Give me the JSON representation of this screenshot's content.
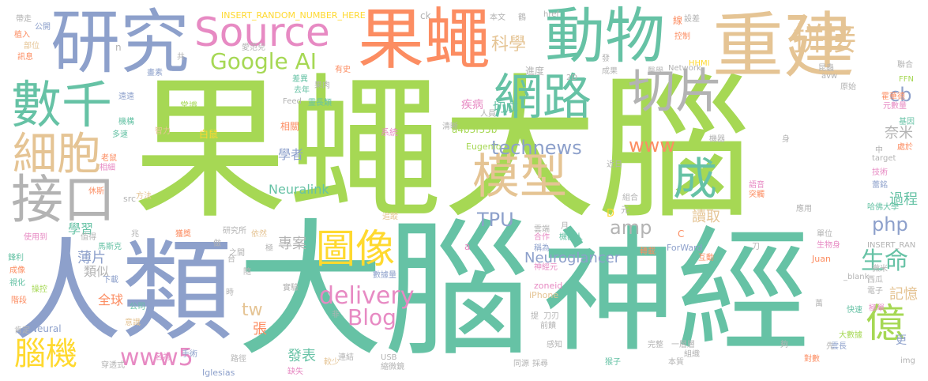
{
  "words": [
    {
      "text": "果蠅大腦",
      "color": "#a6d854"
    },
    {
      "text": "大腦",
      "color": "#66c2a5"
    },
    {
      "text": "神經",
      "color": "#66c2a5"
    },
    {
      "text": "人類",
      "color": "#8da0cb"
    },
    {
      "text": "果蠅",
      "color": "#fc8d62"
    },
    {
      "text": "研究",
      "color": "#8da0cb"
    },
    {
      "text": "重建",
      "color": "#e5c494"
    },
    {
      "text": "動物",
      "color": "#66c2a5"
    },
    {
      "text": "Source",
      "color": "#e78ac3"
    },
    {
      "text": "網路",
      "color": "#66c2a5"
    },
    {
      "text": "切片",
      "color": "#b3b3b3"
    },
    {
      "text": "數千",
      "color": "#66c2a5"
    },
    {
      "text": "細胞",
      "color": "#e5c494"
    },
    {
      "text": "接口",
      "color": "#b3b3b3"
    },
    {
      "text": "模型",
      "color": "#e5c494"
    },
    {
      "text": "圖像",
      "color": "#ffd92f"
    },
    {
      "text": "拼接",
      "color": "#e5c494"
    },
    {
      "text": "Google AI",
      "color": "#a6d854"
    },
    {
      "text": "億",
      "color": "#a6d854"
    },
    {
      "text": "成",
      "color": "#66c2a5"
    },
    {
      "text": "生命",
      "color": "#66c2a5"
    },
    {
      "text": "腦機",
      "color": "#ffd92f"
    },
    {
      "text": "delivery",
      "color": "#e78ac3"
    },
    {
      "text": "www5",
      "color": "#e78ac3"
    },
    {
      "text": "technews",
      "color": "#8da0cb"
    },
    {
      "text": "Blog",
      "color": "#e78ac3"
    },
    {
      "text": "科學",
      "color": "#e5c494"
    },
    {
      "text": "www",
      "color": "#fc8d62"
    },
    {
      "text": "amp",
      "color": "#b3b3b3"
    },
    {
      "text": "TPU",
      "color": "#8da0cb"
    },
    {
      "text": "php",
      "color": "#8da0cb"
    },
    {
      "text": "cb",
      "color": "#8da0cb"
    },
    {
      "text": "tw",
      "color": "#e5c494"
    },
    {
      "text": "Neuralink",
      "color": "#66c2a5"
    },
    {
      "text": "Neuroglancer",
      "color": "#8da0cb"
    },
    {
      "text": "切成",
      "color": "#66c2a5"
    },
    {
      "text": "奈米",
      "color": "#b3b3b3"
    },
    {
      "text": "過程",
      "color": "#66c2a5"
    },
    {
      "text": "記憶",
      "color": "#e5c494"
    },
    {
      "text": "讀取",
      "color": "#e5c494"
    },
    {
      "text": "發表",
      "color": "#66c2a5"
    },
    {
      "text": "專案",
      "color": "#b3b3b3"
    },
    {
      "text": "學習",
      "color": "#66c2a5"
    },
    {
      "text": "薄片",
      "color": "#8da0cb"
    },
    {
      "text": "類似",
      "color": "#b3b3b3"
    },
    {
      "text": "全球",
      "color": "#fc8d62"
    },
    {
      "text": "張",
      "color": "#fc8d62"
    },
    {
      "text": "學者",
      "color": "#8da0cb"
    },
    {
      "text": "INSERT_RANDOM_NUMBER_HERE",
      "color": "#ffd92f"
    },
    {
      "text": "a4b3f35b",
      "color": "#a6d854"
    },
    {
      "text": "進度",
      "color": "#b3b3b3"
    },
    {
      "text": "疾病",
      "color": "#e78ac3"
    },
    {
      "text": "相關",
      "color": "#fc8d62"
    },
    {
      "text": "系統",
      "color": "#e78ac3"
    },
    {
      "text": "白鼠",
      "color": "#ffd92f"
    },
    {
      "text": "常識",
      "color": "#a6d854"
    },
    {
      "text": "靈長類",
      "color": "#66c2a5"
    },
    {
      "text": "D",
      "color": "#ffd92f"
    },
    {
      "text": "元",
      "color": "#b3b3b3"
    },
    {
      "text": "Eugenio",
      "color": "#a6d854"
    },
    {
      "text": "Network",
      "color": "#b3b3b3"
    },
    {
      "text": "ForWard",
      "color": "#8da0cb"
    },
    {
      "text": "zoneid",
      "color": "#e78ac3"
    },
    {
      "text": "iPhone",
      "color": "#e5c494"
    },
    {
      "text": "Iglesias",
      "color": "#8da0cb"
    },
    {
      "text": "USB",
      "color": "#b3b3b3"
    },
    {
      "text": "Juan",
      "color": "#fc8d62"
    },
    {
      "text": "INSERT_RAN",
      "color": "#b3b3b3"
    },
    {
      "text": "_blank",
      "color": "#b3b3b3"
    },
    {
      "text": "target",
      "color": "#b3b3b3"
    },
    {
      "text": "Feed",
      "color": "#b3b3b3"
    },
    {
      "text": "href",
      "color": "#b3b3b3"
    },
    {
      "text": "HHMI",
      "color": "#ffd92f"
    },
    {
      "text": "ck",
      "color": "#b3b3b3"
    },
    {
      "text": "src",
      "color": "#b3b3b3"
    },
    {
      "text": "Neural",
      "color": "#8da0cb"
    },
    {
      "text": "img",
      "color": "#b3b3b3"
    },
    {
      "text": "FFN",
      "color": "#a6d854"
    },
    {
      "text": "avw",
      "color": "#b3b3b3"
    },
    {
      "text": "2D",
      "color": "#b3b3b3"
    },
    {
      "text": "C",
      "color": "#fc8d62"
    },
    {
      "text": "a",
      "color": "#e78ac3"
    },
    {
      "text": "n",
      "color": "#b3b3b3"
    },
    {
      "text": "帶走",
      "color": "#b3b3b3"
    },
    {
      "text": "公開",
      "color": "#8da0cb"
    },
    {
      "text": "植入",
      "color": "#fc8d62"
    },
    {
      "text": "部位",
      "color": "#e5c494"
    },
    {
      "text": "訊息",
      "color": "#fc8d62"
    },
    {
      "text": "鋒利",
      "color": "#66c2a5"
    },
    {
      "text": "成像",
      "color": "#fc8d62"
    },
    {
      "text": "視化",
      "color": "#66c2a5"
    },
    {
      "text": "操控",
      "color": "#a6d854"
    },
    {
      "text": "階段",
      "color": "#fc8d62"
    },
    {
      "text": "肯定",
      "color": "#b3b3b3"
    },
    {
      "text": "使用到",
      "color": "#e78ac3"
    },
    {
      "text": "值得",
      "color": "#b3b3b3"
    },
    {
      "text": "休斯",
      "color": "#fc8d62"
    },
    {
      "text": "相細",
      "color": "#e78ac3"
    },
    {
      "text": "老鼠",
      "color": "#fc8d62"
    },
    {
      "text": "多速",
      "color": "#66c2a5"
    },
    {
      "text": "機構",
      "color": "#66c2a5"
    },
    {
      "text": "遠遠",
      "color": "#8da0cb"
    },
    {
      "text": "畫素",
      "color": "#8da0cb"
    },
    {
      "text": "差異",
      "color": "#66c2a5"
    },
    {
      "text": "果肉",
      "color": "#b3b3b3"
    },
    {
      "text": "有史",
      "color": "#fc8d62"
    },
    {
      "text": "去年",
      "color": "#66c2a5"
    },
    {
      "text": "清晰",
      "color": "#b3b3b3"
    },
    {
      "text": "人員",
      "color": "#b3b3b3"
    },
    {
      "text": "成果",
      "color": "#b3b3b3"
    },
    {
      "text": "醫學",
      "color": "#b3b3b3"
    },
    {
      "text": "昆蟲",
      "color": "#b3b3b3"
    },
    {
      "text": "聯合",
      "color": "#b3b3b3"
    },
    {
      "text": "霍華德",
      "color": "#fc8d62"
    },
    {
      "text": "元數量",
      "color": "#e78ac3"
    },
    {
      "text": "基因",
      "color": "#66c2a5"
    },
    {
      "text": "處於",
      "color": "#fc8d62"
    },
    {
      "text": "技術",
      "color": "#e78ac3"
    },
    {
      "text": "蕾銘",
      "color": "#8da0cb"
    },
    {
      "text": "哈佛大學",
      "color": "#66c2a5"
    },
    {
      "text": "單位",
      "color": "#b3b3b3"
    },
    {
      "text": "生物身",
      "color": "#e78ac3"
    },
    {
      "text": "互動",
      "color": "#fc8d62"
    },
    {
      "text": "西瓜",
      "color": "#b3b3b3"
    },
    {
      "text": "微米",
      "color": "#b3b3b3"
    },
    {
      "text": "電子",
      "color": "#b3b3b3"
    },
    {
      "text": "快速",
      "color": "#66c2a5"
    },
    {
      "text": "大數據",
      "color": "#a6d854"
    },
    {
      "text": "雲長",
      "color": "#8da0cb"
    },
    {
      "text": "對數",
      "color": "#fc8d62"
    },
    {
      "text": "雲端",
      "color": "#b3b3b3"
    },
    {
      "text": "語音",
      "color": "#e78ac3"
    },
    {
      "text": "突觸",
      "color": "#fc8d62"
    },
    {
      "text": "機器",
      "color": "#b3b3b3"
    },
    {
      "text": "組合",
      "color": "#b3b3b3"
    },
    {
      "text": "近日",
      "color": "#b3b3b3"
    },
    {
      "text": "轉載",
      "color": "#fc8d62"
    },
    {
      "text": "機器人",
      "color": "#66c2a5"
    },
    {
      "text": "合作",
      "color": "#e78ac3"
    },
    {
      "text": "稱為",
      "color": "#8da0cb"
    },
    {
      "text": "神經元",
      "color": "#e78ac3"
    },
    {
      "text": "數據量",
      "color": "#8da0cb"
    },
    {
      "text": "追蹤",
      "color": "#e5c494"
    },
    {
      "text": "研究所",
      "color": "#b3b3b3"
    },
    {
      "text": "依然",
      "color": "#e5c494"
    },
    {
      "text": "獲獎",
      "color": "#fc8d62"
    },
    {
      "text": "馬斯克",
      "color": "#66c2a5"
    },
    {
      "text": "下載",
      "color": "#8da0cb"
    },
    {
      "text": "公司",
      "color": "#66c2a5"
    },
    {
      "text": "意識",
      "color": "#e5c494"
    },
    {
      "text": "名為",
      "color": "#e78ac3"
    },
    {
      "text": "穿透式",
      "color": "#b3b3b3"
    },
    {
      "text": "手術",
      "color": "#8da0cb"
    },
    {
      "text": "路徑",
      "color": "#b3b3b3"
    },
    {
      "text": "缺失",
      "color": "#e78ac3"
    },
    {
      "text": "較少",
      "color": "#e5c494"
    },
    {
      "text": "同源",
      "color": "#b3b3b3"
    },
    {
      "text": "採尋",
      "color": "#b3b3b3"
    },
    {
      "text": "完整",
      "color": "#b3b3b3"
    },
    {
      "text": "本質",
      "color": "#b3b3b3"
    },
    {
      "text": "一層層",
      "color": "#b3b3b3"
    },
    {
      "text": "組織",
      "color": "#b3b3b3"
    },
    {
      "text": "猴子",
      "color": "#66c2a5"
    },
    {
      "text": "感知",
      "color": "#b3b3b3"
    },
    {
      "text": "前饋",
      "color": "#b3b3b3"
    },
    {
      "text": "實驗",
      "color": "#b3b3b3"
    },
    {
      "text": "連結",
      "color": "#b3b3b3"
    },
    {
      "text": "縮微鏡",
      "color": "#b3b3b3"
    },
    {
      "text": "刀",
      "color": "#b3b3b3"
    },
    {
      "text": "提",
      "color": "#b3b3b3"
    },
    {
      "text": "刀刃",
      "color": "#b3b3b3"
    },
    {
      "text": "智力",
      "color": "#e5c494"
    },
    {
      "text": "方法",
      "color": "#e5c494"
    },
    {
      "text": "控制",
      "color": "#fc8d62"
    },
    {
      "text": "愛范兒",
      "color": "#b3b3b3"
    },
    {
      "text": "本文",
      "color": "#b3b3b3"
    },
    {
      "text": "鶴",
      "color": "#b3b3b3"
    },
    {
      "text": "設差",
      "color": "#b3b3b3"
    },
    {
      "text": "線",
      "color": "#fc8d62"
    },
    {
      "text": "原始",
      "color": "#b3b3b3"
    },
    {
      "text": "共",
      "color": "#b3b3b3"
    },
    {
      "text": "更",
      "color": "#8da0cb"
    },
    {
      "text": "身",
      "color": "#b3b3b3"
    },
    {
      "text": "萬",
      "color": "#b3b3b3"
    },
    {
      "text": "先",
      "color": "#b3b3b3"
    },
    {
      "text": "中",
      "color": "#b3b3b3"
    },
    {
      "text": "夠",
      "color": "#b3b3b3"
    },
    {
      "text": "月",
      "color": "#b3b3b3"
    },
    {
      "text": "做",
      "color": "#b3b3b3"
    },
    {
      "text": "時",
      "color": "#b3b3b3"
    },
    {
      "text": "非",
      "color": "#b3b3b3"
    },
    {
      "text": "兆",
      "color": "#b3b3b3"
    },
    {
      "text": "台",
      "color": "#b3b3b3"
    },
    {
      "text": "之間",
      "color": "#b3b3b3"
    },
    {
      "text": "隨",
      "color": "#b3b3b3"
    },
    {
      "text": "極",
      "color": "#b3b3b3"
    },
    {
      "text": "發",
      "color": "#b3b3b3"
    },
    {
      "text": "應用",
      "color": "#b3b3b3"
    },
    {
      "text": "極單",
      "color": "#e78ac3"
    }
  ]
}
